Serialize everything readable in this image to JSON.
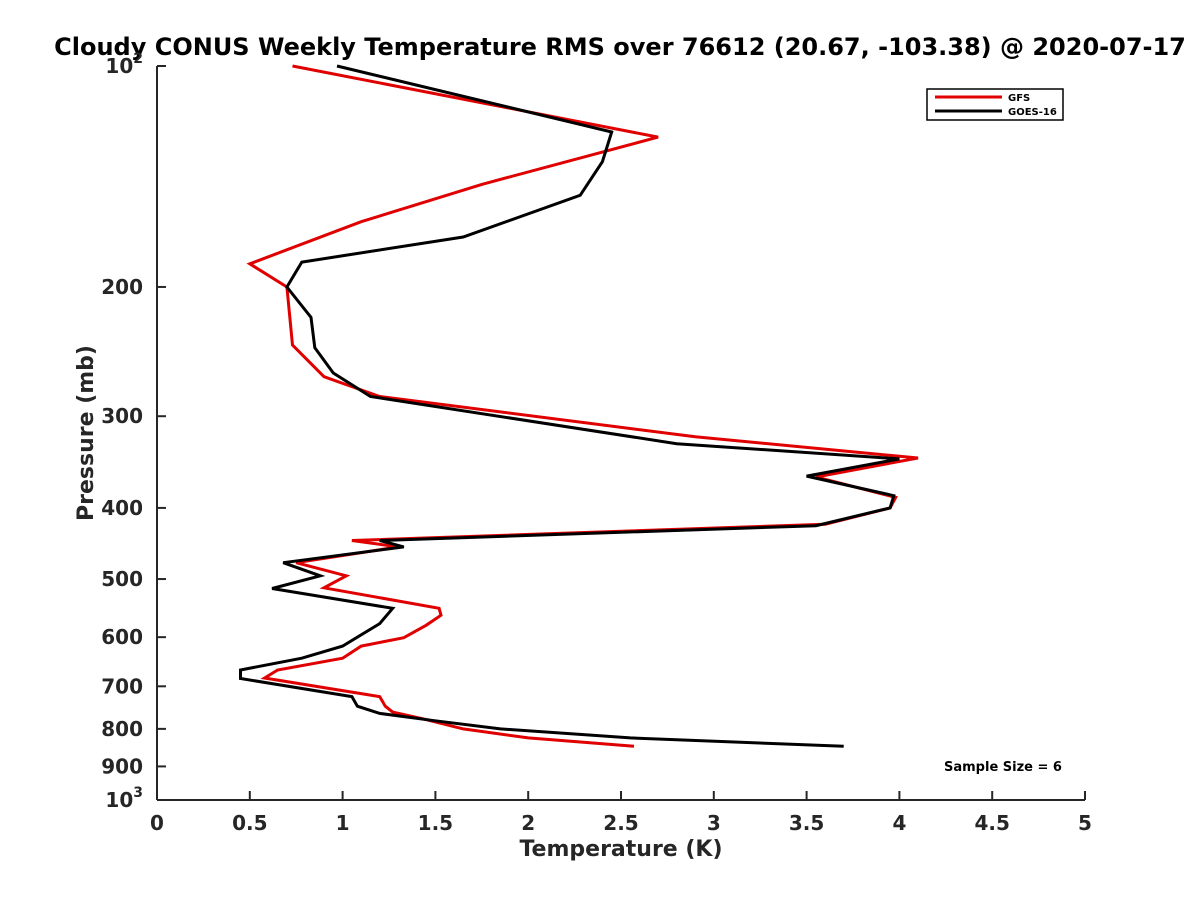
{
  "chart_data": {
    "type": "line",
    "title": "Cloudy CONUS Weekly Temperature RMS over 76612 (20.67, -103.38) @ 2020-07-17",
    "xlabel": "Temperature (K)",
    "ylabel": "Pressure (mb)",
    "xlim": [
      0,
      5
    ],
    "ylim": [
      100,
      1000
    ],
    "yscale": "log",
    "y_reversed": true,
    "x_ticks": [
      0,
      0.5,
      1,
      1.5,
      2,
      2.5,
      3,
      3.5,
      4,
      4.5,
      5
    ],
    "x_tick_labels": [
      "0",
      "0.5",
      "1",
      "1.5",
      "2",
      "2.5",
      "3",
      "3.5",
      "4",
      "4.5",
      "5"
    ],
    "y_ticks": [
      {
        "value": 100,
        "base": "10",
        "exp": "2"
      },
      {
        "value": 200,
        "label": "200"
      },
      {
        "value": 300,
        "label": "300"
      },
      {
        "value": 400,
        "label": "400"
      },
      {
        "value": 500,
        "label": "500"
      },
      {
        "value": 600,
        "label": "600"
      },
      {
        "value": 700,
        "label": "700"
      },
      {
        "value": 800,
        "label": "800"
      },
      {
        "value": 900,
        "label": "900"
      },
      {
        "value": 1000,
        "base": "10",
        "exp": "3"
      }
    ],
    "legend_position": "top-right",
    "annotation": "Sample Size = 6",
    "series": [
      {
        "name": "GFS",
        "color": "#e00000",
        "points": [
          [
            0.73,
            100
          ],
          [
            2.7,
            125
          ],
          [
            1.75,
            145
          ],
          [
            1.1,
            163
          ],
          [
            0.5,
            186
          ],
          [
            0.7,
            200
          ],
          [
            0.73,
            240
          ],
          [
            0.9,
            265
          ],
          [
            1.2,
            282
          ],
          [
            2.9,
            320
          ],
          [
            4.1,
            342
          ],
          [
            3.55,
            363
          ],
          [
            3.98,
            387
          ],
          [
            3.95,
            400
          ],
          [
            3.6,
            421
          ],
          [
            1.05,
            443
          ],
          [
            1.3,
            452
          ],
          [
            0.75,
            475
          ],
          [
            1.02,
            495
          ],
          [
            0.9,
            514
          ],
          [
            1.52,
            548
          ],
          [
            1.53,
            560
          ],
          [
            1.45,
            578
          ],
          [
            1.33,
            601
          ],
          [
            1.1,
            617
          ],
          [
            1.0,
            641
          ],
          [
            0.65,
            665
          ],
          [
            0.58,
            682
          ],
          [
            1.2,
            723
          ],
          [
            1.23,
            745
          ],
          [
            1.27,
            759
          ],
          [
            1.43,
            775
          ],
          [
            1.65,
            800
          ],
          [
            2.0,
            823
          ],
          [
            2.57,
            845
          ]
        ]
      },
      {
        "name": "GOES-16",
        "color": "#000000",
        "points": [
          [
            0.97,
            100
          ],
          [
            2.45,
            123
          ],
          [
            2.4,
            135
          ],
          [
            2.28,
            150
          ],
          [
            1.65,
            171
          ],
          [
            0.78,
            185
          ],
          [
            0.7,
            200
          ],
          [
            0.83,
            220
          ],
          [
            0.85,
            242
          ],
          [
            0.95,
            262
          ],
          [
            1.15,
            282
          ],
          [
            2.8,
            327
          ],
          [
            4.0,
            343
          ],
          [
            3.5,
            362
          ],
          [
            3.97,
            385
          ],
          [
            3.95,
            400
          ],
          [
            3.55,
            423
          ],
          [
            1.2,
            443
          ],
          [
            1.33,
            452
          ],
          [
            0.68,
            475
          ],
          [
            0.88,
            495
          ],
          [
            0.62,
            515
          ],
          [
            1.27,
            548
          ],
          [
            1.2,
            575
          ],
          [
            1.0,
            617
          ],
          [
            0.78,
            641
          ],
          [
            0.45,
            665
          ],
          [
            0.45,
            683
          ],
          [
            1.05,
            723
          ],
          [
            1.08,
            745
          ],
          [
            1.2,
            762
          ],
          [
            1.5,
            780
          ],
          [
            1.85,
            800
          ],
          [
            2.55,
            823
          ],
          [
            3.7,
            845
          ]
        ]
      }
    ]
  }
}
